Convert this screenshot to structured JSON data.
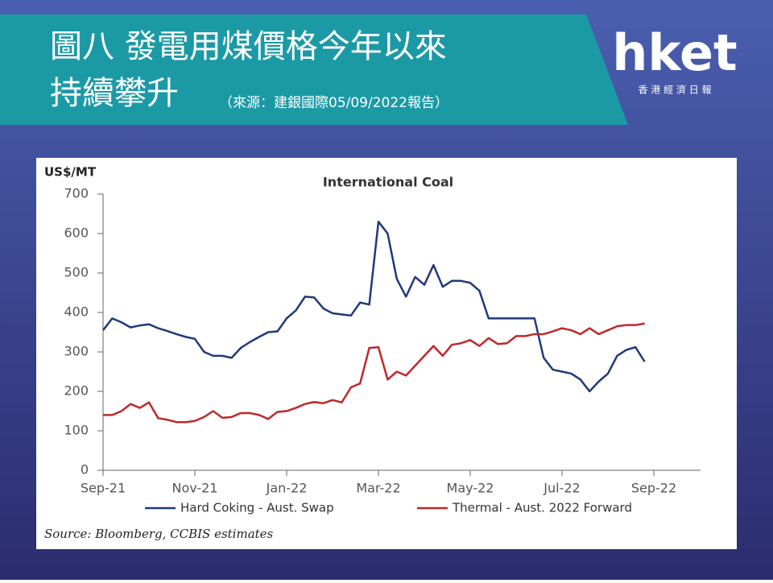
{
  "slide": {
    "title_line1": "圖八 發電用煤價格今年以來",
    "title_line2": "持續攀升",
    "source_note": "（來源：建銀國際05/09/2022報告）",
    "logo": "hket",
    "logo_subtitle": "香 港 經 濟 日 報"
  },
  "chart_data": {
    "type": "line",
    "title": "International Coal",
    "y_label": "US$/MT",
    "source": "Source: Bloomberg, CCBIS estimates",
    "categories": [
      "Sep-21",
      null,
      null,
      null,
      null,
      null,
      null,
      null,
      null,
      null,
      "Nov-21",
      null,
      null,
      null,
      null,
      null,
      null,
      null,
      null,
      null,
      "Jan-22",
      null,
      null,
      null,
      null,
      null,
      null,
      null,
      null,
      null,
      "Mar-22",
      null,
      null,
      null,
      null,
      null,
      null,
      null,
      null,
      null,
      "May-22",
      null,
      null,
      null,
      null,
      null,
      null,
      null,
      null,
      null,
      "Jul-22",
      null,
      null,
      null,
      null,
      null,
      null,
      null,
      null,
      null,
      "Sep-22"
    ],
    "series": [
      {
        "name": "Hard Coking - Aust. Swap",
        "color": "#1f3a7a",
        "values": [
          355,
          385,
          375,
          362,
          367,
          370,
          360,
          353,
          345,
          338,
          333,
          300,
          290,
          290,
          285,
          310,
          325,
          338,
          350,
          352,
          385,
          405,
          440,
          438,
          410,
          398,
          395,
          392,
          425,
          420,
          630,
          600,
          485,
          440,
          490,
          470,
          520,
          465,
          480,
          480,
          475,
          455,
          385,
          385,
          385,
          385,
          385,
          385,
          285,
          255,
          250,
          245,
          230,
          200,
          225,
          245,
          290,
          305,
          312,
          275,
          null
        ]
      },
      {
        "name": "Thermal - Aust. 2022 Forward",
        "color": "#c0282a",
        "values": [
          140,
          140,
          150,
          168,
          158,
          172,
          132,
          128,
          122,
          122,
          125,
          135,
          150,
          133,
          135,
          145,
          145,
          140,
          130,
          148,
          150,
          158,
          168,
          173,
          170,
          178,
          172,
          210,
          220,
          310,
          312,
          230,
          250,
          240,
          265,
          290,
          315,
          290,
          318,
          322,
          330,
          315,
          335,
          320,
          322,
          340,
          340,
          345,
          345,
          352,
          360,
          355,
          345,
          360,
          345,
          355,
          365,
          368,
          368,
          372,
          null
        ]
      }
    ],
    "ylim": [
      0,
      700
    ],
    "yticks": [
      0,
      100,
      200,
      300,
      400,
      500,
      600,
      700
    ],
    "grid": false,
    "legend": "bottom"
  }
}
